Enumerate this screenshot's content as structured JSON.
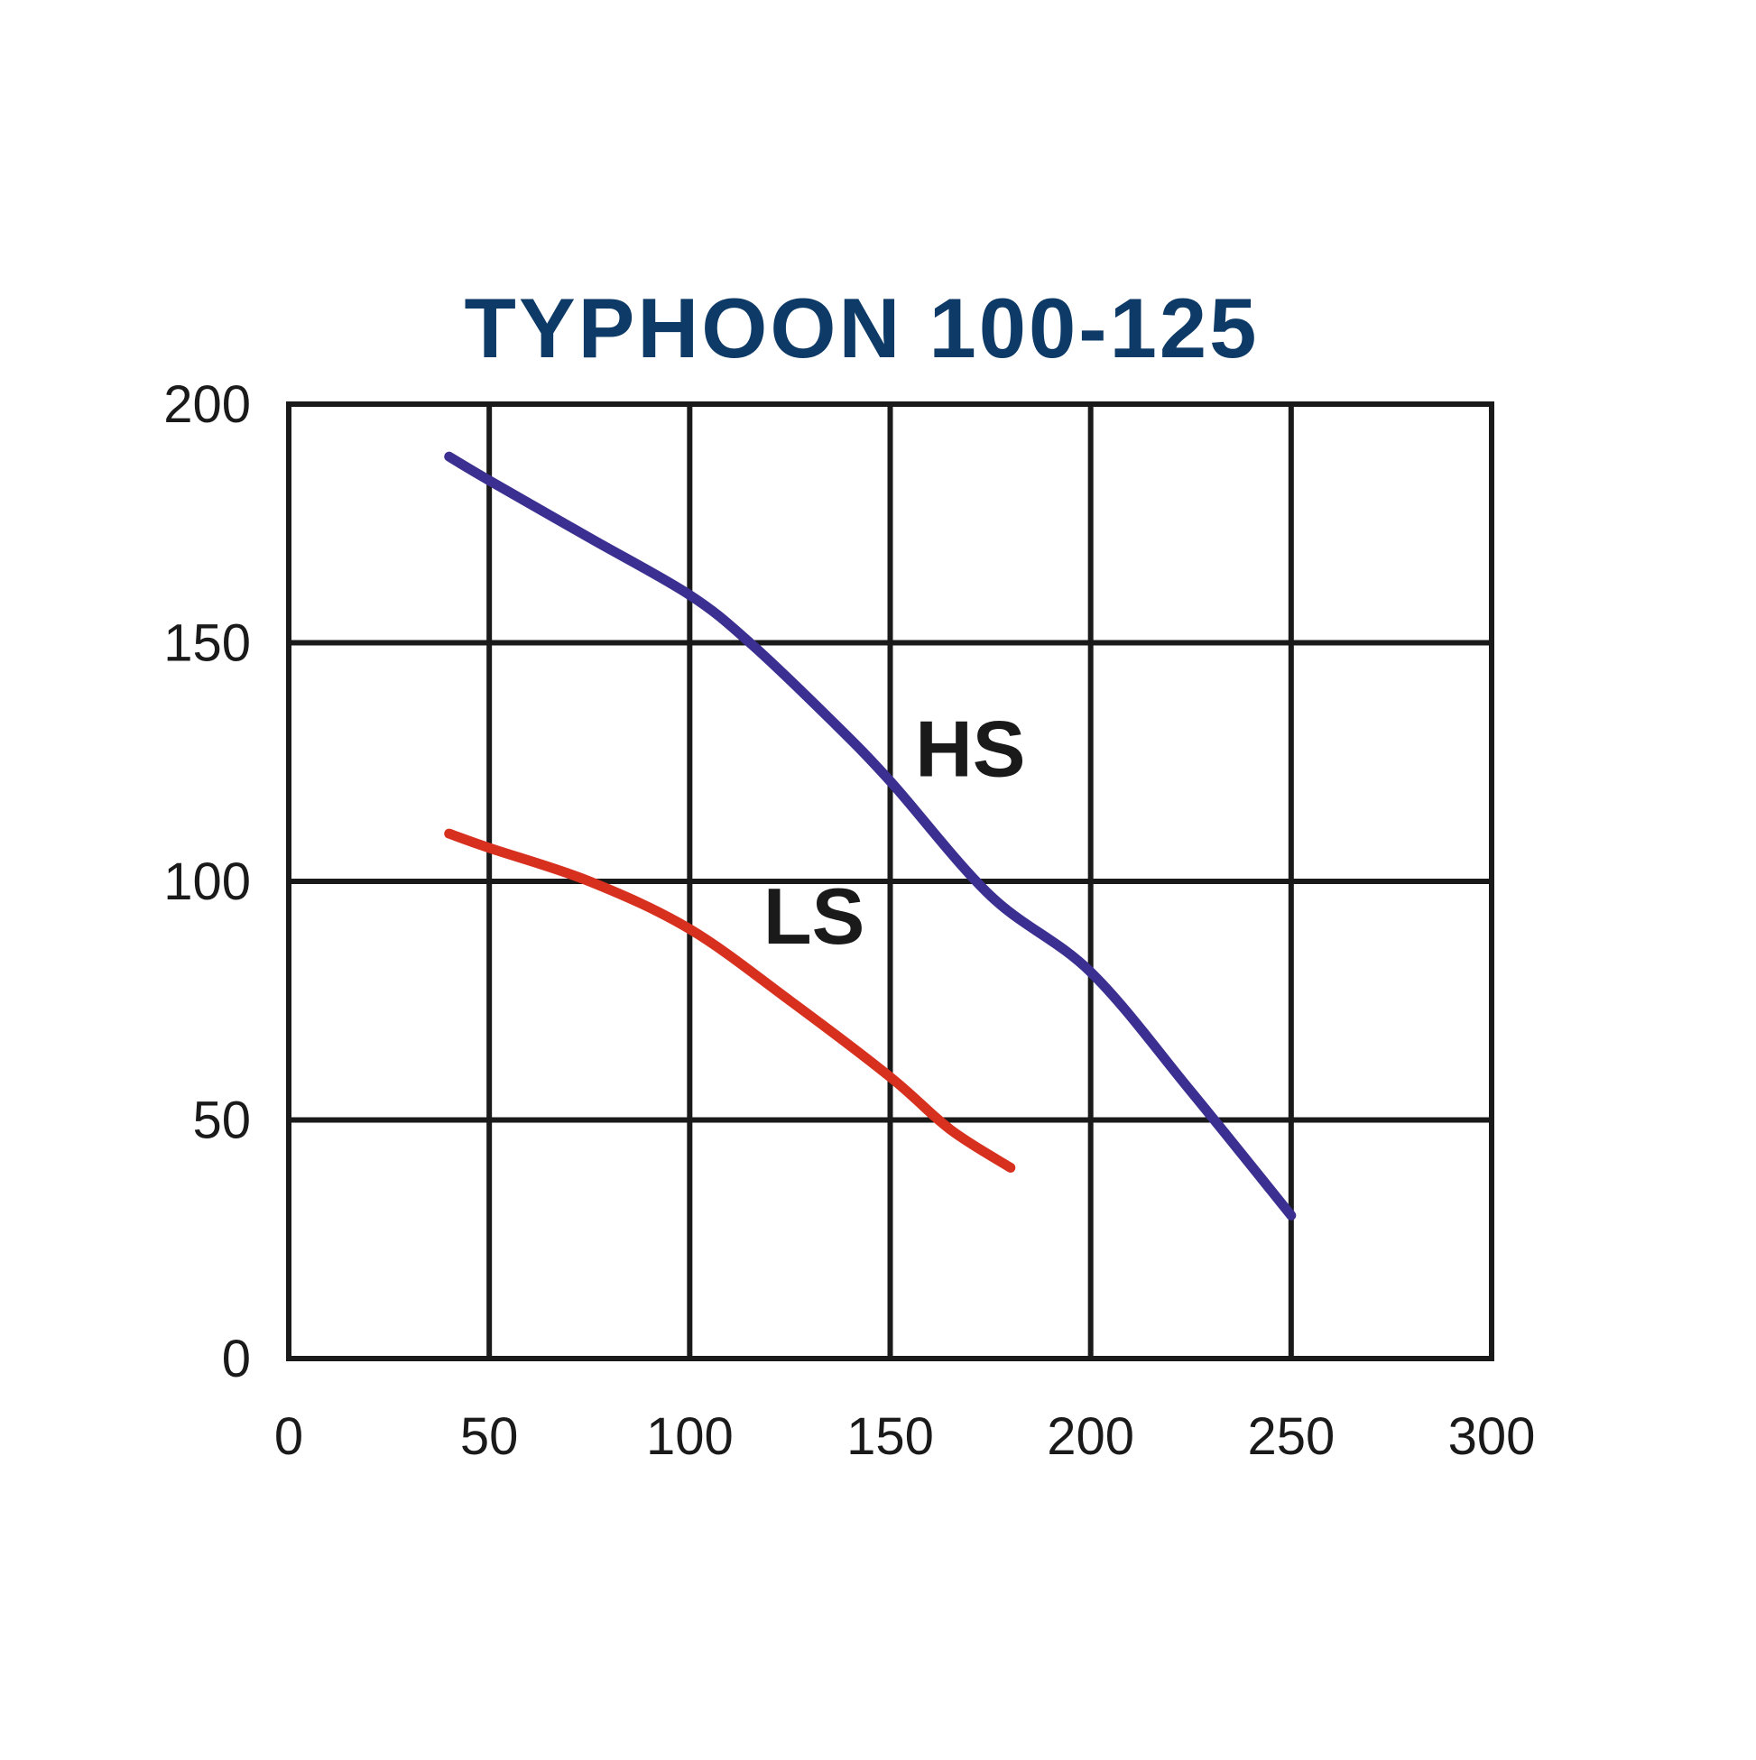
{
  "chart_data": {
    "type": "line",
    "title": "TYPHOON 100-125",
    "xlabel": "",
    "ylabel": "",
    "xlim": [
      0,
      300
    ],
    "ylim": [
      0,
      200
    ],
    "x_ticks": [
      "0",
      "50",
      "100",
      "150",
      "200",
      "250",
      "300"
    ],
    "y_ticks": [
      "0",
      "50",
      "100",
      "150",
      "200"
    ],
    "grid": true,
    "legend": "none",
    "series": [
      {
        "name": "HS",
        "color": "#3b2f91",
        "points": [
          [
            40,
            189
          ],
          [
            50,
            184
          ],
          [
            75,
            172
          ],
          [
            100,
            160
          ],
          [
            115,
            150
          ],
          [
            135,
            134
          ],
          [
            150,
            121
          ],
          [
            175,
            97
          ],
          [
            200,
            81
          ],
          [
            225,
            56
          ],
          [
            250,
            30
          ]
        ],
        "label_at": [
          170,
          122
        ]
      },
      {
        "name": "LS",
        "color": "#d8301f",
        "points": [
          [
            40,
            110
          ],
          [
            50,
            107
          ],
          [
            75,
            100
          ],
          [
            100,
            90
          ],
          [
            125,
            75
          ],
          [
            150,
            59
          ],
          [
            165,
            48
          ],
          [
            180,
            40
          ]
        ],
        "label_at": [
          131,
          87
        ]
      }
    ],
    "colors": {
      "title": "#0d3a66",
      "grid": "#1a1a1a",
      "background": "#ffffff"
    }
  }
}
